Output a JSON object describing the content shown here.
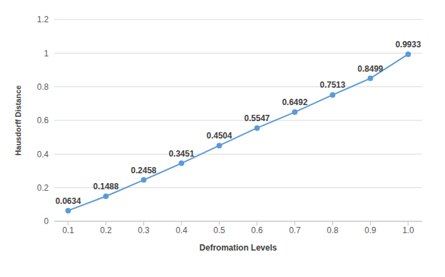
{
  "chart_data": {
    "type": "line",
    "x_label": "Defromation Levels",
    "y_label": "Hausdorff Distance",
    "categories": [
      "0.1",
      "0.2",
      "0.3",
      "0.4",
      "0.5",
      "0.6",
      "0.7",
      "0.8",
      "0.9",
      "1.0"
    ],
    "values": [
      0.0634,
      0.1488,
      0.2458,
      0.3451,
      0.4504,
      0.5547,
      0.6492,
      0.7513,
      0.8499,
      0.9933
    ],
    "color": "#5b9bd5",
    "marker": "circle",
    "line_style": "solid",
    "ylim": [
      0,
      1.2
    ],
    "yticks": [
      0,
      0.2,
      0.4,
      0.6,
      0.8,
      1,
      1.2
    ],
    "grid": true,
    "data_labels": true
  }
}
